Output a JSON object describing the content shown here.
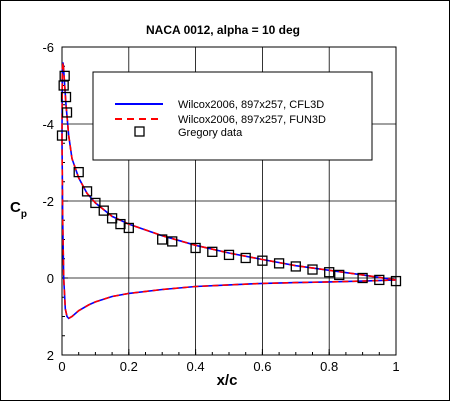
{
  "chart_data": {
    "type": "line",
    "title": "NACA 0012, alpha = 10 deg",
    "xlabel": "x/c",
    "ylabel": "C",
    "ylabel_sub": "p",
    "xlim": [
      0,
      1
    ],
    "ylim": [
      2,
      -6
    ],
    "y_inverted": true,
    "grid": true,
    "legend_position": "top-right",
    "x_ticks": [
      0,
      0.2,
      0.4,
      0.6,
      0.8,
      1
    ],
    "x_tick_labels": [
      "0",
      "0.2",
      "0.4",
      "0.6",
      "0.8",
      "1"
    ],
    "y_ticks": [
      -6,
      -4,
      -2,
      0,
      2
    ],
    "y_tick_labels": [
      "-6",
      "-4",
      "-2",
      "0",
      "2"
    ],
    "series": [
      {
        "name": "Wilcox2006, 897x257, CFL3D",
        "style": "solid",
        "color": "#0000ff",
        "upper": {
          "x": [
            0,
            0.001,
            0.003,
            0.005,
            0.008,
            0.012,
            0.02,
            0.03,
            0.05,
            0.075,
            0.1,
            0.15,
            0.2,
            0.3,
            0.4,
            0.5,
            0.6,
            0.7,
            0.8,
            0.9,
            1.0
          ],
          "y": [
            -3.6,
            -5.4,
            -5.6,
            -5.4,
            -5.0,
            -4.5,
            -3.7,
            -3.1,
            -2.6,
            -2.2,
            -1.95,
            -1.6,
            -1.4,
            -1.1,
            -0.85,
            -0.65,
            -0.48,
            -0.32,
            -0.2,
            -0.08,
            0.05
          ]
        },
        "lower": {
          "x": [
            0,
            0.002,
            0.005,
            0.01,
            0.015,
            0.02,
            0.03,
            0.05,
            0.08,
            0.1,
            0.15,
            0.2,
            0.3,
            0.4,
            0.5,
            0.6,
            0.7,
            0.8,
            0.9,
            1.0
          ],
          "y": [
            -3.6,
            -1.5,
            0.0,
            0.8,
            1.0,
            1.05,
            1.0,
            0.85,
            0.7,
            0.62,
            0.48,
            0.4,
            0.3,
            0.22,
            0.18,
            0.14,
            0.12,
            0.1,
            0.08,
            0.05
          ]
        }
      },
      {
        "name": "Wilcox2006, 897x257, FUN3D",
        "style": "dashed",
        "color": "#ff0000",
        "upper": {
          "x": [
            0,
            0.001,
            0.003,
            0.005,
            0.008,
            0.012,
            0.02,
            0.03,
            0.05,
            0.075,
            0.1,
            0.15,
            0.2,
            0.3,
            0.4,
            0.5,
            0.6,
            0.7,
            0.8,
            0.9,
            1.0
          ],
          "y": [
            -3.6,
            -5.4,
            -5.6,
            -5.4,
            -5.0,
            -4.5,
            -3.7,
            -3.1,
            -2.6,
            -2.2,
            -1.95,
            -1.6,
            -1.4,
            -1.1,
            -0.85,
            -0.65,
            -0.48,
            -0.32,
            -0.2,
            -0.08,
            0.05
          ]
        },
        "lower": {
          "x": [
            0,
            0.002,
            0.005,
            0.01,
            0.015,
            0.02,
            0.03,
            0.05,
            0.08,
            0.1,
            0.15,
            0.2,
            0.3,
            0.4,
            0.5,
            0.6,
            0.7,
            0.8,
            0.9,
            1.0
          ],
          "y": [
            -3.6,
            -1.5,
            0.0,
            0.8,
            1.0,
            1.05,
            1.0,
            0.85,
            0.7,
            0.62,
            0.48,
            0.4,
            0.3,
            0.22,
            0.18,
            0.14,
            0.12,
            0.1,
            0.08,
            0.05
          ]
        }
      },
      {
        "name": "Gregory data",
        "style": "marker-square",
        "color": "#000000",
        "x": [
          0.0,
          0.005,
          0.008,
          0.012,
          0.015,
          0.05,
          0.075,
          0.1,
          0.125,
          0.15,
          0.175,
          0.2,
          0.3,
          0.33,
          0.4,
          0.45,
          0.5,
          0.55,
          0.6,
          0.65,
          0.7,
          0.75,
          0.8,
          0.83,
          0.9,
          0.95,
          1.0
        ],
        "y": [
          -3.7,
          -5.0,
          -5.25,
          -4.7,
          -4.3,
          -2.75,
          -2.25,
          -1.95,
          -1.75,
          -1.55,
          -1.4,
          -1.3,
          -1.0,
          -0.95,
          -0.78,
          -0.68,
          -0.6,
          -0.52,
          -0.45,
          -0.38,
          -0.3,
          -0.22,
          -0.15,
          -0.08,
          0.0,
          0.05,
          0.08
        ]
      }
    ]
  }
}
